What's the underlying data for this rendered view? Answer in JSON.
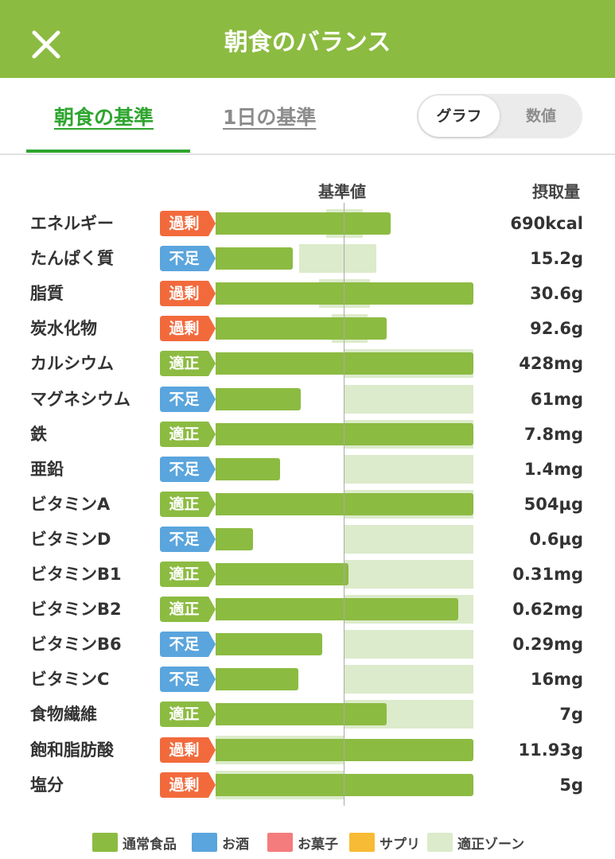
{
  "header": {
    "title": "朝食のバランス"
  },
  "tabs": [
    {
      "label": "朝食の基準",
      "active": true
    },
    {
      "label": "1日の基準",
      "active": false
    }
  ],
  "view_toggle": {
    "options": [
      "グラフ",
      "数値"
    ],
    "selected": "グラフ"
  },
  "columns": {
    "base": "基準値",
    "intake": "摂取量"
  },
  "nutrients": [
    {
      "name": "エネルギー",
      "status": "過剰",
      "value": "690kcal",
      "bar_ratio": 1.36,
      "zone": [
        0.86,
        1.14
      ]
    },
    {
      "name": "たんぱく質",
      "status": "不足",
      "value": "15.2g",
      "bar_ratio": 0.6,
      "zone": [
        0.65,
        1.25
      ]
    },
    {
      "name": "脂質",
      "status": "過剰",
      "value": "30.6g",
      "bar_ratio": 2.0,
      "zone": [
        0.8,
        1.2
      ]
    },
    {
      "name": "炭水化物",
      "status": "過剰",
      "value": "92.6g",
      "bar_ratio": 1.33,
      "zone": [
        0.9,
        1.18
      ]
    },
    {
      "name": "カルシウム",
      "status": "適正",
      "value": "428mg",
      "bar_ratio": 2.0,
      "zone": [
        1.0,
        2.0
      ]
    },
    {
      "name": "マグネシウム",
      "status": "不足",
      "value": "61mg",
      "bar_ratio": 0.66,
      "zone": [
        1.0,
        2.0
      ]
    },
    {
      "name": "鉄",
      "status": "適正",
      "value": "7.8mg",
      "bar_ratio": 2.0,
      "zone": [
        1.0,
        2.0
      ]
    },
    {
      "name": "亜鉛",
      "status": "不足",
      "value": "1.4mg",
      "bar_ratio": 0.5,
      "zone": [
        1.0,
        2.0
      ]
    },
    {
      "name": "ビタミンA",
      "status": "適正",
      "value": "504µg",
      "bar_ratio": 2.0,
      "zone": [
        1.0,
        2.0
      ]
    },
    {
      "name": "ビタミンD",
      "status": "不足",
      "value": "0.6µg",
      "bar_ratio": 0.29,
      "zone": [
        1.0,
        2.0
      ]
    },
    {
      "name": "ビタミンB1",
      "status": "適正",
      "value": "0.31mg",
      "bar_ratio": 1.03,
      "zone": [
        1.0,
        2.0
      ]
    },
    {
      "name": "ビタミンB2",
      "status": "適正",
      "value": "0.62mg",
      "bar_ratio": 1.88,
      "zone": [
        1.0,
        2.0
      ]
    },
    {
      "name": "ビタミンB6",
      "status": "不足",
      "value": "0.29mg",
      "bar_ratio": 0.83,
      "zone": [
        1.0,
        2.0
      ]
    },
    {
      "name": "ビタミンC",
      "status": "不足",
      "value": "16mg",
      "bar_ratio": 0.64,
      "zone": [
        1.0,
        2.0
      ]
    },
    {
      "name": "食物繊維",
      "status": "適正",
      "value": "7g",
      "bar_ratio": 1.33,
      "zone": [
        1.0,
        2.0
      ]
    },
    {
      "name": "飽和脂肪酸",
      "status": "過剰",
      "value": "11.93g",
      "bar_ratio": 2.0,
      "zone": [
        0.0,
        1.0
      ]
    },
    {
      "name": "塩分",
      "status": "過剰",
      "value": "5g",
      "bar_ratio": 2.0,
      "zone": [
        0.0,
        1.0
      ]
    }
  ],
  "status_colors": {
    "過剰": "#f26a3c",
    "不足": "#5aa5dd",
    "適正": "#8cbb41"
  },
  "legend": [
    {
      "label": "通常食品",
      "color": "#8cbb41"
    },
    {
      "label": "お酒",
      "color": "#5aa5dd"
    },
    {
      "label": "お菓子",
      "color": "#f47c7c"
    },
    {
      "label": "サプリ",
      "color": "#f7bb35"
    },
    {
      "label": "適正ゾーン",
      "color": "#dcebcb"
    }
  ]
}
